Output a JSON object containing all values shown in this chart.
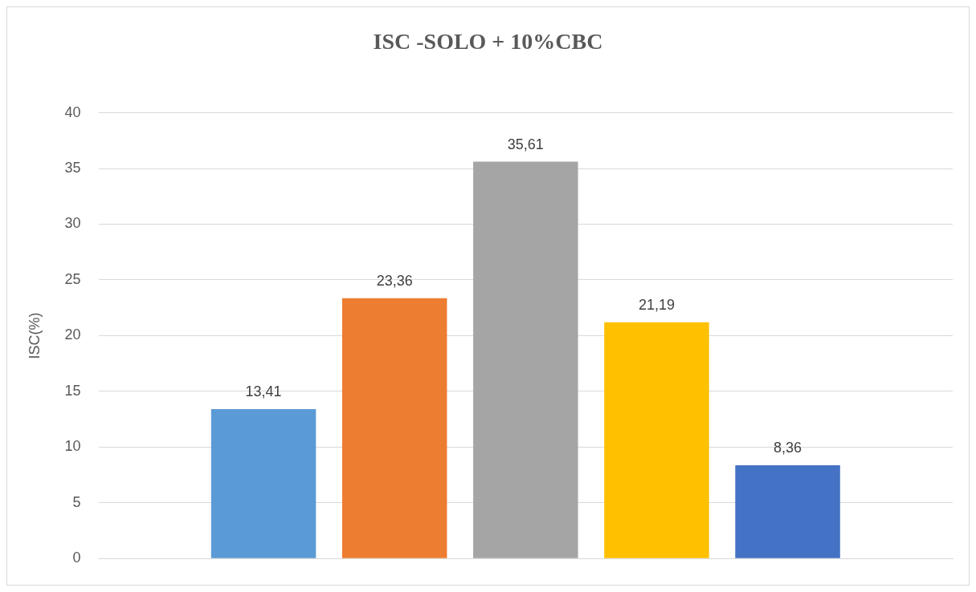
{
  "chart_data": {
    "type": "bar",
    "title": "ISC -SOLO + 10%CBC",
    "ylabel": "ISC(%)",
    "categories": [
      null
    ],
    "series": [
      {
        "color": "#5b9bd5",
        "values": [
          13.41
        ],
        "value_labels": [
          "13,41"
        ]
      },
      {
        "color": "#ed7d31",
        "values": [
          23.36
        ],
        "value_labels": [
          "23,36"
        ]
      },
      {
        "color": "#a5a5a5",
        "values": [
          35.61
        ],
        "value_labels": [
          "35,61"
        ]
      },
      {
        "color": "#ffc000",
        "values": [
          21.19
        ],
        "value_labels": [
          "21,19"
        ]
      },
      {
        "color": "#4472c4",
        "values": [
          8.36
        ],
        "value_labels": [
          "8,36"
        ]
      }
    ],
    "ylim": [
      0,
      40
    ],
    "yticks": [
      0,
      5,
      10,
      15,
      20,
      25,
      30,
      35,
      40
    ],
    "grid": "y",
    "legend": false
  }
}
